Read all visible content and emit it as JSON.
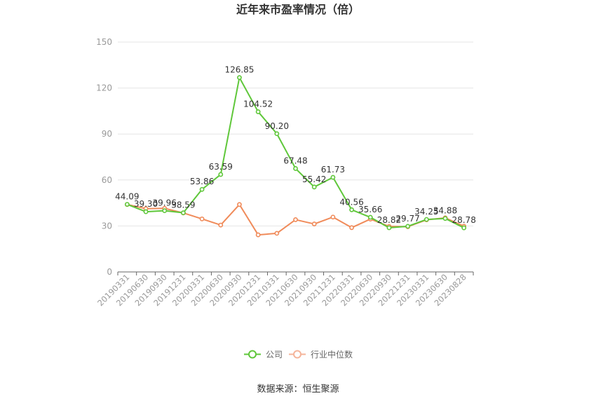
{
  "chart_data": {
    "type": "line",
    "title": "近年来市盈率情况（倍）",
    "categories": [
      "20190331",
      "20190630",
      "20190930",
      "20191231",
      "20200331",
      "20200630",
      "20200930",
      "20201231",
      "20210331",
      "20210630",
      "20210930",
      "20211231",
      "20220331",
      "20220630",
      "20220930",
      "20221231",
      "20230331",
      "20230630",
      "20230828"
    ],
    "series": [
      {
        "name": "公司",
        "color": "#5fc73a",
        "values": [
          44.09,
          39.3,
          39.96,
          38.59,
          53.86,
          63.59,
          126.85,
          104.52,
          90.2,
          67.48,
          55.42,
          61.73,
          40.56,
          35.66,
          28.82,
          29.77,
          34.25,
          34.88,
          28.78
        ],
        "labels": [
          "44.09",
          "39.30",
          "39.96",
          "38.59",
          "53.86",
          "63.59",
          "126.85",
          "104.52",
          "90.20",
          "67.48",
          "55.42",
          "61.73",
          "40.56",
          "35.66",
          "28.82",
          "29.77",
          "34.25",
          "34.88",
          "28.78"
        ]
      },
      {
        "name": "行业中位数",
        "color": "#f08b5a",
        "values": [
          44.0,
          41.3,
          41.5,
          38.5,
          34.6,
          30.6,
          44.0,
          24.2,
          25.2,
          34.1,
          31.3,
          35.8,
          28.9,
          34.5,
          29.7,
          29.5,
          34.0,
          35.3,
          29.8
        ]
      }
    ],
    "yticks": [
      "0",
      "30",
      "60",
      "90",
      "120",
      "150"
    ],
    "ylim": [
      0,
      150
    ],
    "grid": true,
    "legend_position": "bottom-center"
  },
  "footer": {
    "source": "数据来源：恒生聚源"
  }
}
